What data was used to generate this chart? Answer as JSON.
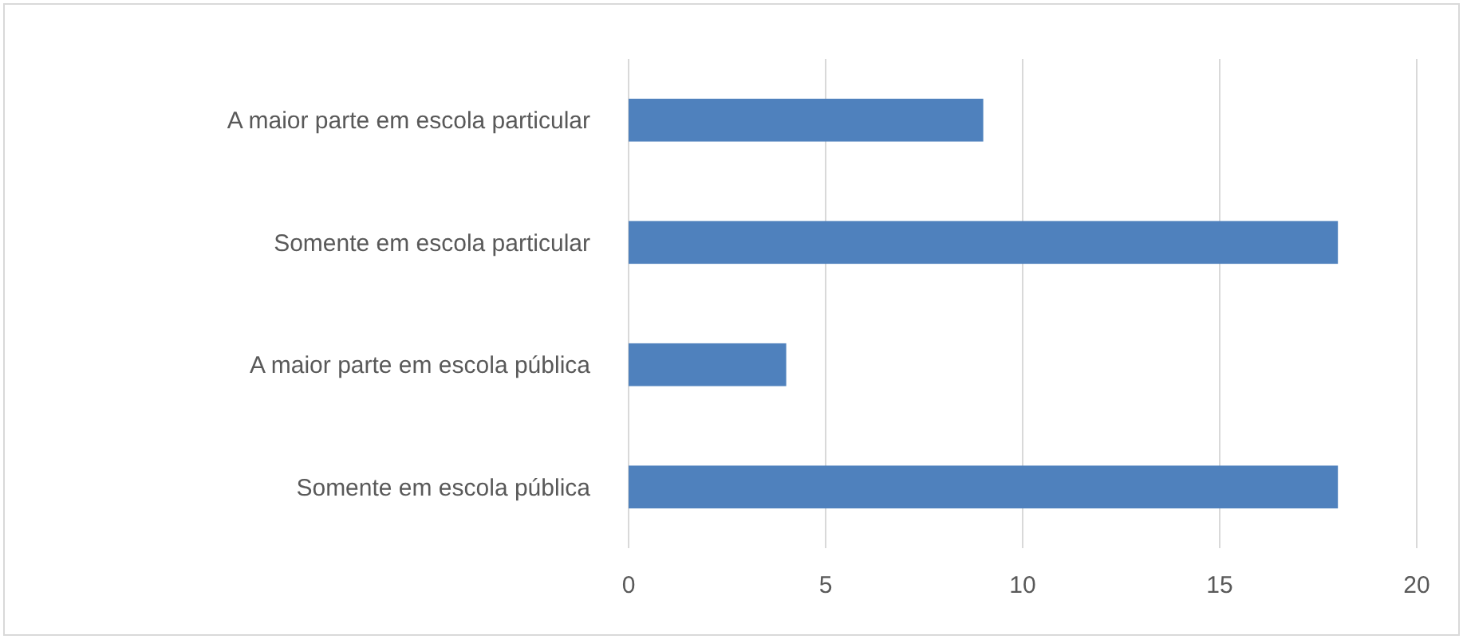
{
  "chart_data": {
    "type": "bar",
    "orientation": "horizontal",
    "categories": [
      "A maior parte em escola particular",
      "Somente em escola particular",
      "A maior parte em escola pública",
      "Somente em escola pública"
    ],
    "values": [
      9,
      18,
      4,
      18
    ],
    "color": "#4f81bd",
    "xlim": [
      0,
      20
    ],
    "xticks": [
      0,
      5,
      10,
      15,
      20
    ],
    "grid": "x"
  }
}
